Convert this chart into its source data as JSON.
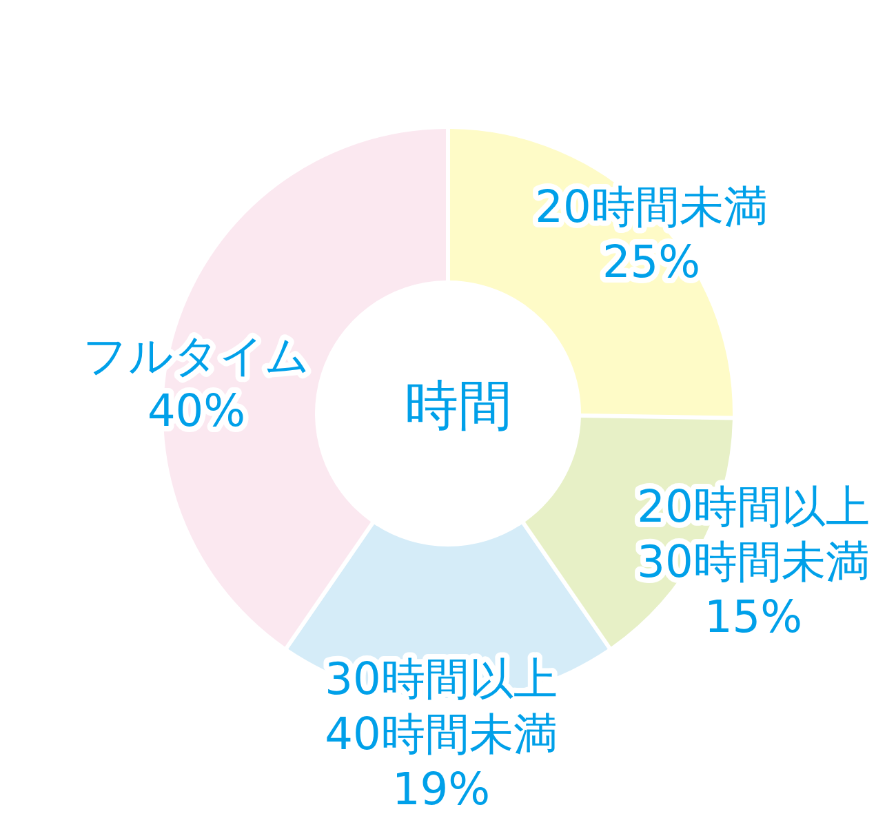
{
  "chart_data": {
    "type": "donut",
    "title": "時間",
    "categories": [
      "20時間未満",
      "20時間以上30時間未満",
      "30時間以上40時間未満",
      "フルタイム"
    ],
    "values": [
      25,
      15,
      19,
      40
    ],
    "value_labels": [
      "25%",
      "15%",
      "19%",
      "40%"
    ],
    "colors": [
      "#fefbc7",
      "#e7f0c6",
      "#d5ecf8",
      "#fbe8f0"
    ]
  }
}
